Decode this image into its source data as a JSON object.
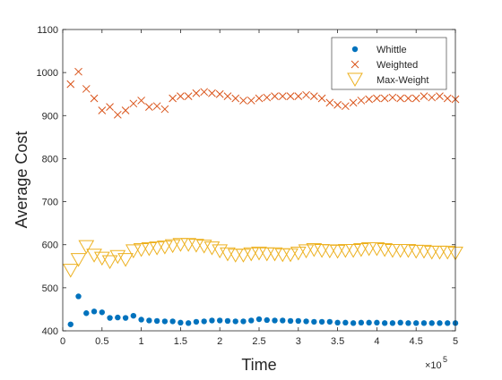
{
  "chart_data": {
    "type": "scatter",
    "xlabel": "Time",
    "ylabel": "Average Cost",
    "x_exponent_label": "×10",
    "x_exponent_power": "5",
    "xlim": [
      0,
      5
    ],
    "ylim": [
      400,
      1100
    ],
    "x_tick_values": [
      0,
      0.5,
      1,
      1.5,
      2,
      2.5,
      3,
      3.5,
      4,
      4.5,
      5
    ],
    "x_tick_labels": [
      "0",
      "0.5",
      "1",
      "1.5",
      "2",
      "2.5",
      "3",
      "3.5",
      "4",
      "4.5",
      "5"
    ],
    "y_tick_values": [
      400,
      500,
      600,
      700,
      800,
      900,
      1000,
      1100
    ],
    "y_tick_labels": [
      "400",
      "500",
      "600",
      "700",
      "800",
      "900",
      "1000",
      "1100"
    ],
    "grid": false,
    "legend_position": "top-right",
    "x": [
      0.1,
      0.2,
      0.3,
      0.4,
      0.5,
      0.6,
      0.7,
      0.8,
      0.9,
      1.0,
      1.1,
      1.2,
      1.3,
      1.4,
      1.5,
      1.6,
      1.7,
      1.8,
      1.9,
      2.0,
      2.1,
      2.2,
      2.3,
      2.4,
      2.5,
      2.6,
      2.7,
      2.8,
      2.9,
      3.0,
      3.1,
      3.2,
      3.3,
      3.4,
      3.5,
      3.6,
      3.7,
      3.8,
      3.9,
      4.0,
      4.1,
      4.2,
      4.3,
      4.4,
      4.5,
      4.6,
      4.7,
      4.8,
      4.9,
      5.0
    ],
    "series": [
      {
        "name": "Whittle",
        "marker": "dot",
        "color": "#0072BD",
        "values": [
          415,
          480,
          441,
          445,
          443,
          430,
          431,
          430,
          435,
          426,
          424,
          423,
          422,
          422,
          419,
          418,
          421,
          422,
          424,
          424,
          423,
          422,
          422,
          424,
          427,
          425,
          424,
          424,
          423,
          423,
          422,
          421,
          421,
          421,
          419,
          419,
          418,
          419,
          419,
          419,
          418,
          418,
          419,
          418,
          418,
          418,
          418,
          418,
          418,
          418
        ]
      },
      {
        "name": "Weighted",
        "marker": "x",
        "color": "#D95319",
        "values": [
          973,
          1002,
          962,
          940,
          912,
          920,
          902,
          912,
          928,
          935,
          920,
          922,
          915,
          940,
          945,
          945,
          952,
          955,
          952,
          950,
          945,
          940,
          935,
          935,
          940,
          942,
          945,
          945,
          945,
          945,
          948,
          945,
          940,
          930,
          925,
          922,
          930,
          935,
          938,
          940,
          940,
          942,
          940,
          940,
          940,
          945,
          942,
          945,
          940,
          938
        ]
      },
      {
        "name": "Max-Weight",
        "marker": "triangle-down",
        "color": "#EDB120",
        "values": [
          540,
          565,
          595,
          575,
          568,
          560,
          572,
          565,
          585,
          588,
          590,
          592,
          594,
          597,
          600,
          600,
          598,
          596,
          592,
          585,
          578,
          575,
          575,
          578,
          580,
          578,
          578,
          576,
          576,
          580,
          585,
          588,
          586,
          585,
          584,
          586,
          586,
          588,
          590,
          590,
          588,
          586,
          586,
          586,
          584,
          584,
          582,
          582,
          582,
          580
        ]
      }
    ]
  }
}
